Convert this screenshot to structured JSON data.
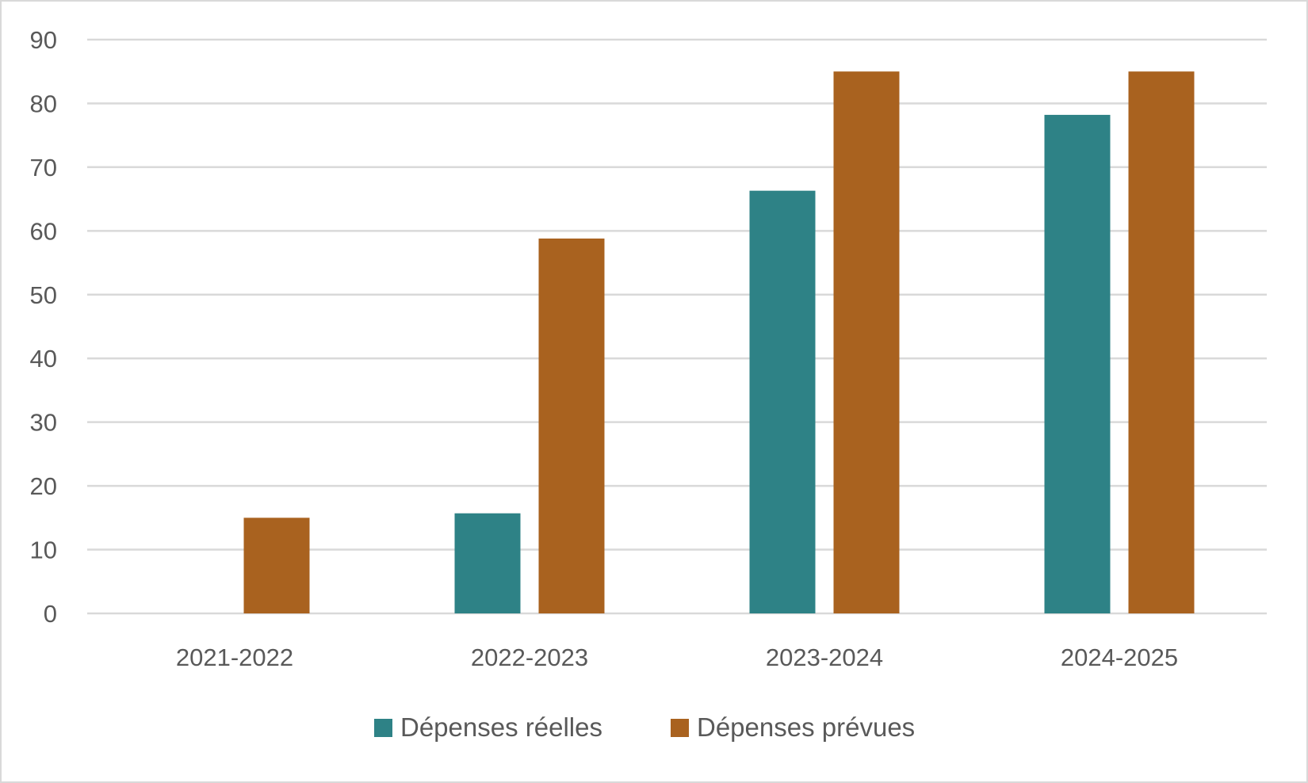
{
  "chart_data": {
    "type": "bar",
    "title": "",
    "xlabel": "",
    "ylabel": "",
    "categories": [
      "2021-2022",
      "2022-2023",
      "2023-2024",
      "2024-2025"
    ],
    "series": [
      {
        "name": "Dépenses réelles",
        "color": "#2e8286",
        "values": [
          0,
          15.7,
          66.3,
          78.2
        ]
      },
      {
        "name": "Dépenses prévues",
        "color": "#a9621f",
        "values": [
          15,
          58.8,
          85,
          85
        ]
      }
    ],
    "ylim": [
      0,
      90
    ],
    "yticks": [
      0,
      10,
      20,
      30,
      40,
      50,
      60,
      70,
      80,
      90
    ],
    "grid": true,
    "legend_position": "bottom"
  }
}
